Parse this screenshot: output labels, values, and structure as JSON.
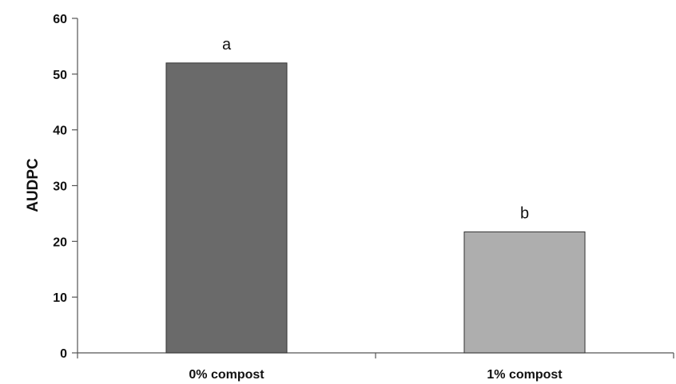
{
  "chart_data": {
    "type": "bar",
    "ylabel": "AUDPC",
    "categories": [
      "0% compost",
      "1% compost"
    ],
    "values": [
      52,
      21.7
    ],
    "significance_labels": [
      "a",
      "b"
    ],
    "bar_colors": [
      "#6a6a6a",
      "#aeaeae"
    ],
    "ylim": [
      0,
      60
    ],
    "yticks": [
      0,
      10,
      20,
      30,
      40,
      50,
      60
    ],
    "grid": false,
    "legend": "none"
  }
}
